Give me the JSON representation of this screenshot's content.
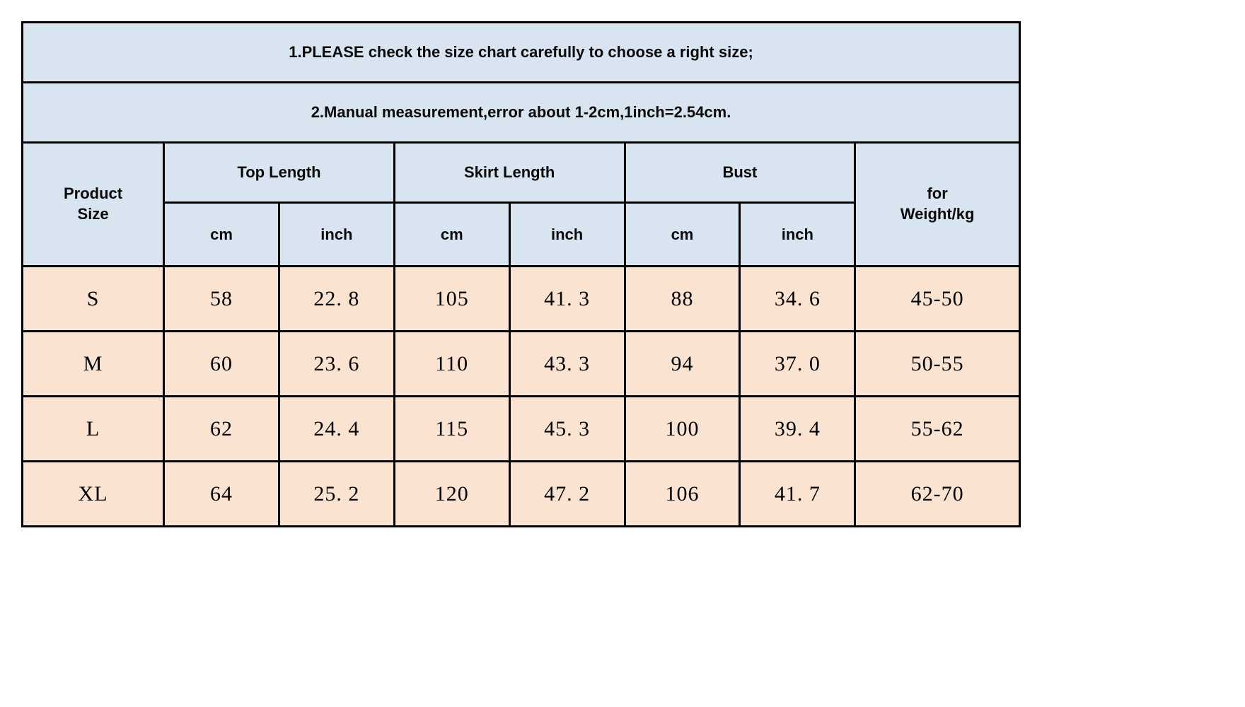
{
  "table": {
    "notices": [
      "1.PLEASE check the size chart carefully to choose a right size;",
      "2.Manual measurement,error about 1-2cm,1inch=2.54cm."
    ],
    "header": {
      "product_size": "Product Size",
      "top_length": "Top Length",
      "skirt_length": "Skirt Length",
      "bust": "Bust",
      "weight": "for Weight/kg",
      "cm": "cm",
      "inch": "inch"
    },
    "rows": [
      {
        "size": "S",
        "top_cm": "58",
        "top_in": "22. 8",
        "skirt_cm": "105",
        "skirt_in": "41. 3",
        "bust_cm": "88",
        "bust_in": "34. 6",
        "weight": "45-50"
      },
      {
        "size": "M",
        "top_cm": "60",
        "top_in": "23. 6",
        "skirt_cm": "110",
        "skirt_in": "43. 3",
        "bust_cm": "94",
        "bust_in": "37. 0",
        "weight": "50-55"
      },
      {
        "size": "L",
        "top_cm": "62",
        "top_in": "24. 4",
        "skirt_cm": "115",
        "skirt_in": "45. 3",
        "bust_cm": "100",
        "bust_in": "39. 4",
        "weight": "55-62"
      },
      {
        "size": "XL",
        "top_cm": "64",
        "top_in": "25. 2",
        "skirt_cm": "120",
        "skirt_in": "47. 2",
        "bust_cm": "106",
        "bust_in": "41. 7",
        "weight": "62-70"
      }
    ],
    "style": {
      "header_bg": "#d8e5f1",
      "data_bg": "#fbe3d2",
      "border_color": "#000000",
      "border_width": 3,
      "notice_fontsize": 22,
      "header_fontsize": 22,
      "data_fontsize": 30,
      "header_font": "Verdana",
      "data_font": "Times New Roman"
    }
  }
}
